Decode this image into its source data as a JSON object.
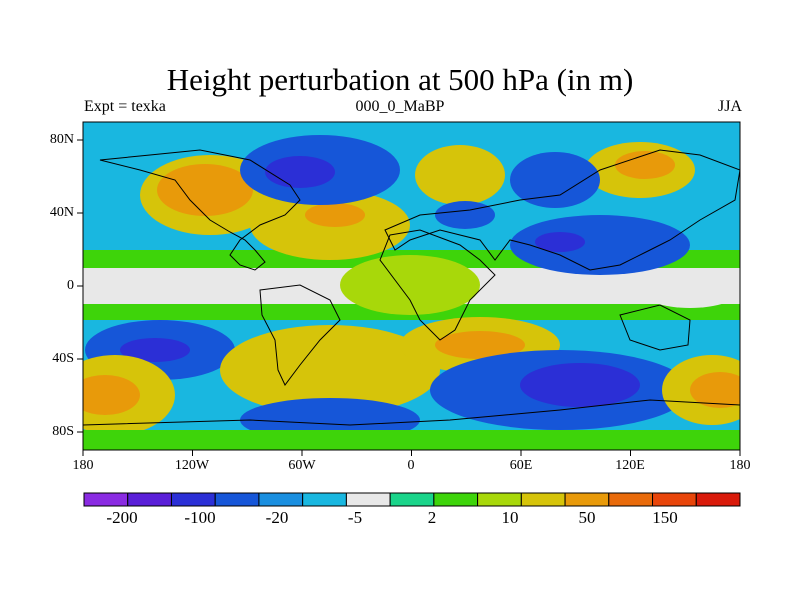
{
  "title": "Height perturbation at 500 hPa (in m)",
  "left_string": "Expt = texka",
  "center_string": "000_0_MaBP",
  "right_string": "JJA",
  "lat_ticks": [
    "80N",
    "40N",
    "0",
    "40S",
    "80S"
  ],
  "lon_ticks": [
    "180",
    "120W",
    "60W",
    "0",
    "60E",
    "120E",
    "180"
  ],
  "colorbar": {
    "labels": [
      "-200",
      "-100",
      "-20",
      "-5",
      "2",
      "10",
      "50",
      "150"
    ],
    "colors": [
      "#8a2be2",
      "#5a1fd8",
      "#2b2fd6",
      "#1656d8",
      "#1a8fe0",
      "#19b7e0",
      "#e8e8e8",
      "#1ad48a",
      "#3ed40a",
      "#a8d80a",
      "#d6c40a",
      "#e89a0a",
      "#e86a0a",
      "#e8450a",
      "#d91a0a"
    ]
  }
}
